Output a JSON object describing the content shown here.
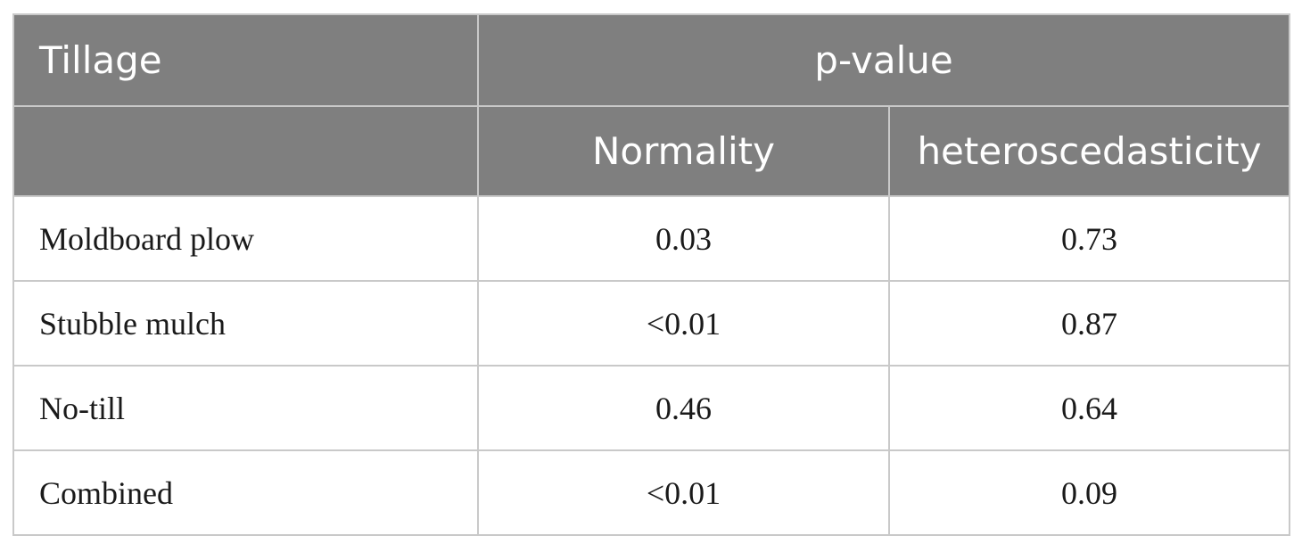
{
  "table": {
    "header": {
      "tillage": "Tillage",
      "pvalue": "p-value",
      "normality": "Normality",
      "heteroscedasticity": "heteroscedasticity"
    },
    "rows": [
      {
        "tillage": "Moldboard plow",
        "normality": "0.03",
        "heteroscedasticity": "0.73"
      },
      {
        "tillage": "Stubble mulch",
        "normality": "<0.01",
        "heteroscedasticity": "0.87"
      },
      {
        "tillage": "No-till",
        "normality": "0.46",
        "heteroscedasticity": "0.64"
      },
      {
        "tillage": "Combined",
        "normality": "<0.01",
        "heteroscedasticity": "0.09"
      }
    ]
  }
}
